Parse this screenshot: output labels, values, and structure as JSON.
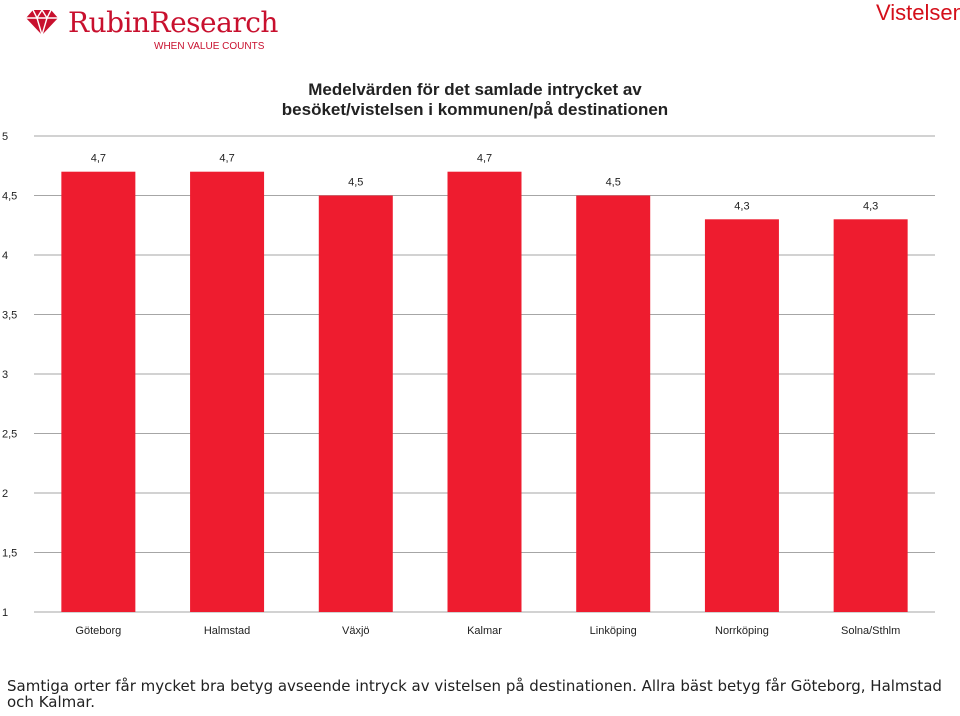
{
  "header": {
    "brand_name": "RubinResearch",
    "brand_tagline": "WHEN VALUE COUNTS",
    "slide_title": "Vistelsen"
  },
  "colors": {
    "bar": "#ee1c2f",
    "brand": "#c8102e",
    "grid": "#a6a6a6"
  },
  "chart_data": {
    "type": "bar",
    "title": "Medelvärden för det samlade intrycket av besöket/vistelsen i kommunen/på destinationen",
    "title_lines": [
      "Medelvärden för det samlade intrycket av",
      "besöket/vistelsen i kommunen/på destinationen"
    ],
    "categories": [
      "Göteborg",
      "Halmstad",
      "Växjö",
      "Kalmar",
      "Linköping",
      "Norrköping",
      "Solna/Sthlm"
    ],
    "values": [
      4.7,
      4.7,
      4.5,
      4.7,
      4.5,
      4.3,
      4.3
    ],
    "value_labels": [
      "4,7",
      "4,7",
      "4,5",
      "4,7",
      "4,5",
      "4,3",
      "4,3"
    ],
    "ylim": [
      1,
      5
    ],
    "yticks": [
      1,
      1.5,
      2,
      2.5,
      3,
      3.5,
      4,
      4.5,
      5
    ],
    "ytick_labels": [
      "1",
      "1,5",
      "2",
      "2,5",
      "3",
      "3,5",
      "4",
      "4,5",
      "5"
    ],
    "xlabel": "",
    "ylabel": "",
    "grid": true,
    "legend": "none"
  },
  "caption": "Samtiga orter får mycket bra betyg avseende intryck av vistelsen på destinationen. Allra bäst betyg får Göteborg, Halmstad och Kalmar."
}
